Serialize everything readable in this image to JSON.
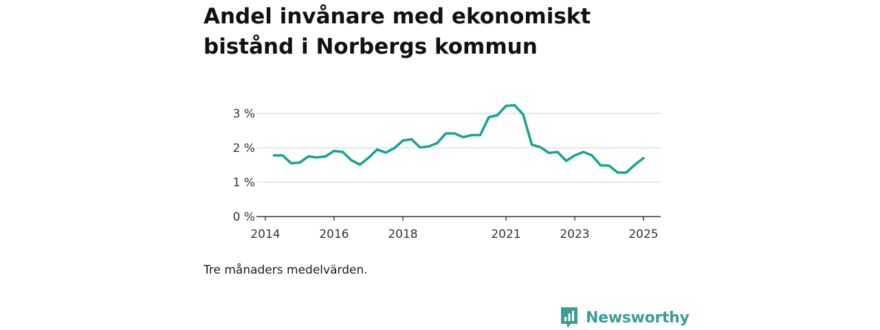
{
  "title": "Andel invånare med ekonomiskt bistånd i Norbergs kommun",
  "note": "Tre månaders medelvärden.",
  "brand": {
    "name": "Newsworthy",
    "icon": "newsworthy-logo-icon",
    "color": "#3a9e96"
  },
  "chart_data": {
    "type": "line",
    "title": "Andel invånare med ekonomiskt bistånd i Norbergs kommun",
    "xlabel": "",
    "ylabel": "",
    "xlim": [
      2014,
      2025.5
    ],
    "ylim": [
      0,
      3.5
    ],
    "x_ticks": [
      2014,
      2016,
      2018,
      2021,
      2023,
      2025
    ],
    "x_tick_labels": [
      "2014",
      "2016",
      "2018",
      "2021",
      "2023",
      "2025"
    ],
    "y_ticks": [
      0,
      1,
      2,
      3
    ],
    "y_tick_labels": [
      "0 %",
      "1 %",
      "2 %",
      "3 %"
    ],
    "grid": true,
    "line_color": "#13a397",
    "series": [
      {
        "x": [
          2014.25,
          2014.5,
          2014.75,
          2015.0,
          2015.25,
          2015.5,
          2015.75,
          2016.0,
          2016.25,
          2016.5,
          2016.75,
          2017.0,
          2017.25,
          2017.5,
          2017.75,
          2018.0,
          2018.25,
          2018.5,
          2018.75,
          2019.0,
          2019.25,
          2019.5,
          2019.75,
          2020.0,
          2020.25,
          2020.5,
          2020.75,
          2021.0,
          2021.25,
          2021.5,
          2021.75,
          2022.0,
          2022.25,
          2022.5,
          2022.75,
          2023.0,
          2023.25,
          2023.5,
          2023.75,
          2024.0,
          2024.25,
          2024.5,
          2024.75,
          2025.0
        ],
        "values": [
          1.78,
          1.78,
          1.55,
          1.57,
          1.75,
          1.72,
          1.75,
          1.91,
          1.88,
          1.64,
          1.51,
          1.71,
          1.95,
          1.86,
          1.99,
          2.21,
          2.25,
          2.01,
          2.04,
          2.14,
          2.42,
          2.42,
          2.31,
          2.37,
          2.37,
          2.89,
          2.95,
          3.22,
          3.24,
          2.97,
          2.09,
          2.02,
          1.85,
          1.88,
          1.62,
          1.78,
          1.88,
          1.78,
          1.49,
          1.48,
          1.28,
          1.28,
          1.51,
          1.7
        ]
      }
    ]
  }
}
